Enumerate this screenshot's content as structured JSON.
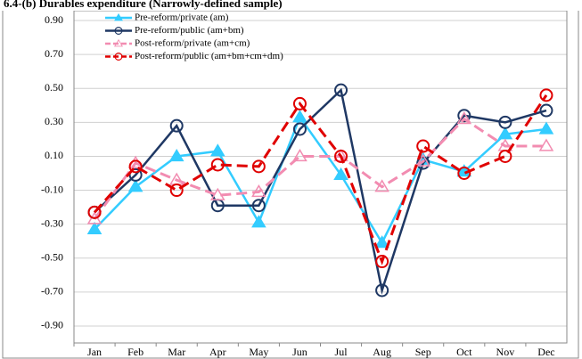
{
  "chart_data": {
    "type": "line",
    "title": "6.4-(b)  Durables expenditure (Narrowly-defined sample)",
    "categories": [
      "Jan",
      "Feb",
      "Mar",
      "Apr",
      "May",
      "Jun",
      "Jul",
      "Aug",
      "Sep",
      "Oct",
      "Nov",
      "Dec"
    ],
    "series": [
      {
        "name": "Pre-reform/private (am)",
        "color": "#33ccff",
        "marker": "triangle",
        "dashed": false,
        "values": [
          -0.33,
          -0.08,
          0.1,
          0.13,
          -0.29,
          0.33,
          -0.01,
          -0.41,
          0.08,
          0.01,
          0.23,
          0.26
        ]
      },
      {
        "name": "Pre-reform/public (am+bm)",
        "color": "#1f3864",
        "marker": "circle",
        "dashed": false,
        "values": [
          -0.23,
          -0.01,
          0.28,
          -0.19,
          -0.19,
          0.26,
          0.49,
          -0.69,
          0.06,
          0.34,
          0.3,
          0.37
        ]
      },
      {
        "name": "Post-reform/private (am+cm)",
        "color": "#f28cb1",
        "marker": "triangle",
        "dashed": true,
        "values": [
          -0.27,
          0.06,
          -0.04,
          -0.13,
          -0.11,
          0.1,
          0.1,
          -0.08,
          0.07,
          0.32,
          0.16,
          0.16
        ]
      },
      {
        "name": "Post-reform/public (am+bm+cm+dm)",
        "color": "#e00000",
        "marker": "circle",
        "dashed": true,
        "values": [
          -0.23,
          0.04,
          -0.1,
          0.05,
          0.04,
          0.41,
          0.1,
          -0.52,
          0.16,
          0.0,
          0.1,
          0.46
        ]
      }
    ],
    "ylim": [
      -1.0,
      1.0
    ],
    "yticks": [
      {
        "value": -0.9,
        "label": "-0.90"
      },
      {
        "value": -0.7,
        "label": "-0.70"
      },
      {
        "value": -0.5,
        "label": "-0.50"
      },
      {
        "value": -0.3,
        "label": "-0.30"
      },
      {
        "value": -0.1,
        "label": "-0.10"
      },
      {
        "value": 0.1,
        "label": "0.10"
      },
      {
        "value": 0.3,
        "label": "0.30"
      },
      {
        "value": 0.5,
        "label": "0.50"
      },
      {
        "value": 0.7,
        "label": "0.70"
      },
      {
        "value": 0.9,
        "label": "0.90"
      }
    ],
    "grid": true,
    "legend": "top-left"
  }
}
